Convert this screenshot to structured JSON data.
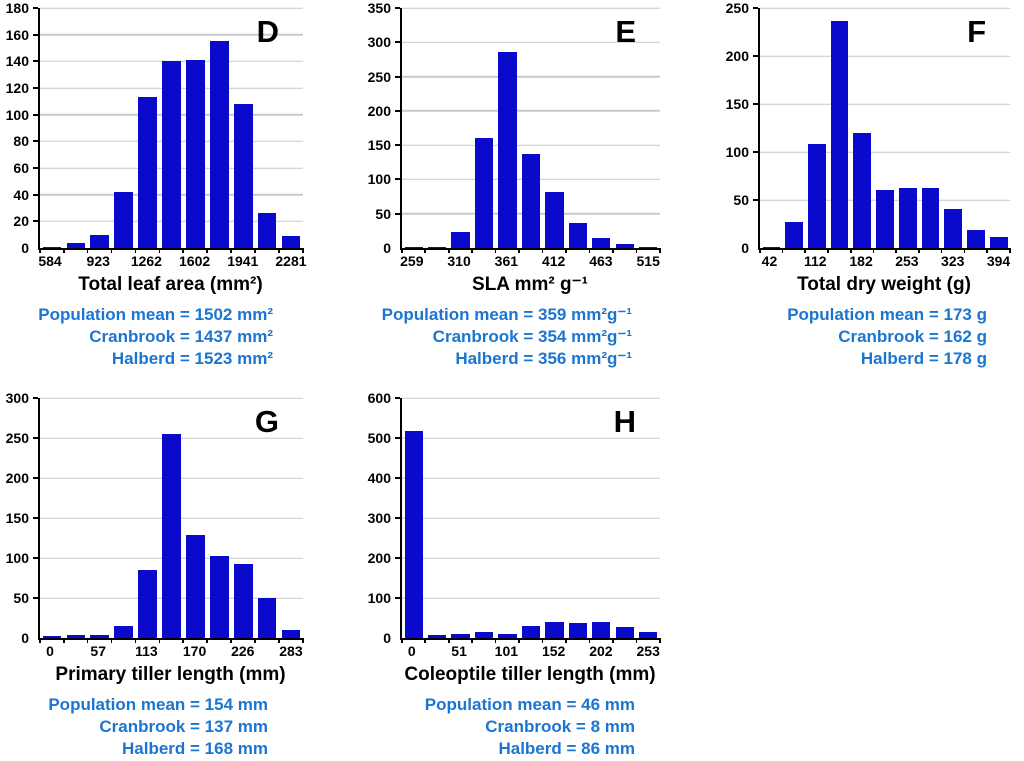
{
  "figure": {
    "background": "#ffffff",
    "colors": {
      "bar_fill": "#0a0acd",
      "gridline": "#c9c9c9",
      "axis": "#000000",
      "mean_text": "#1b75d1",
      "label_text": "#000000"
    }
  },
  "chart_data": [
    {
      "type": "bar",
      "panel_label": "D",
      "xlabel": "Total leaf area (mm²)",
      "ylim": [
        0,
        180
      ],
      "yticks": [
        0,
        20,
        40,
        60,
        80,
        100,
        120,
        140,
        160,
        180
      ],
      "x_tick_labels": [
        "584",
        "923",
        "1262",
        "1602",
        "1941",
        "2281"
      ],
      "values": [
        1,
        4,
        10,
        42,
        113,
        140,
        141,
        155,
        108,
        26,
        9
      ],
      "grid": "horizontal",
      "legend": "none",
      "mean_lines": [
        "Population mean = 1502 mm²",
        "Cranbrook = 1437 mm²",
        "Halberd = 1523 mm²"
      ]
    },
    {
      "type": "bar",
      "panel_label": "E",
      "xlabel": "SLA mm² g⁻¹",
      "ylim": [
        0,
        350
      ],
      "yticks": [
        0,
        50,
        100,
        150,
        200,
        250,
        300,
        350
      ],
      "x_tick_labels": [
        "259",
        "310",
        "361",
        "412",
        "463",
        "515"
      ],
      "values": [
        1,
        2,
        23,
        160,
        286,
        137,
        81,
        37,
        14,
        6,
        1
      ],
      "grid": "horizontal",
      "legend": "none",
      "mean_lines": [
        "Population mean = 359 mm²g⁻¹",
        "Cranbrook = 354 mm²g⁻¹",
        "Halberd = 356 mm²g⁻¹"
      ]
    },
    {
      "type": "bar",
      "panel_label": "F",
      "xlabel": "Total dry weight (g)",
      "ylim": [
        0,
        250
      ],
      "yticks": [
        0,
        50,
        100,
        150,
        200,
        250
      ],
      "x_tick_labels": [
        "42",
        "112",
        "182",
        "253",
        "323",
        "394"
      ],
      "values": [
        1,
        27,
        108,
        236,
        120,
        60,
        62,
        62,
        41,
        19,
        11
      ],
      "grid": "horizontal",
      "legend": "none",
      "mean_lines": [
        "Population mean = 173 g",
        "Cranbrook = 162 g",
        "Halberd = 178 g"
      ]
    },
    {
      "type": "bar",
      "panel_label": "G",
      "xlabel": "Primary tiller length (mm)",
      "ylim": [
        0,
        300
      ],
      "yticks": [
        0,
        50,
        100,
        150,
        200,
        250,
        300
      ],
      "x_tick_labels": [
        "0",
        "57",
        "113",
        "170",
        "226",
        "283"
      ],
      "values": [
        3,
        4,
        4,
        15,
        85,
        255,
        129,
        102,
        92,
        50,
        10
      ],
      "grid": "horizontal",
      "legend": "none",
      "mean_lines": [
        "Population mean = 154 mm",
        "Cranbrook = 137 mm",
        "Halberd = 168 mm"
      ]
    },
    {
      "type": "bar",
      "panel_label": "H",
      "xlabel": "Coleoptile tiller length (mm)",
      "ylim": [
        0,
        600
      ],
      "yticks": [
        0,
        100,
        200,
        300,
        400,
        500,
        600
      ],
      "x_tick_labels": [
        "0",
        "51",
        "101",
        "152",
        "202",
        "253"
      ],
      "values": [
        518,
        7,
        11,
        16,
        11,
        31,
        40,
        38,
        40,
        27,
        16
      ],
      "grid": "horizontal",
      "legend": "none",
      "mean_lines": [
        "Population mean = 46 mm",
        "Cranbrook = 8 mm",
        "Halberd = 86 mm"
      ]
    }
  ]
}
